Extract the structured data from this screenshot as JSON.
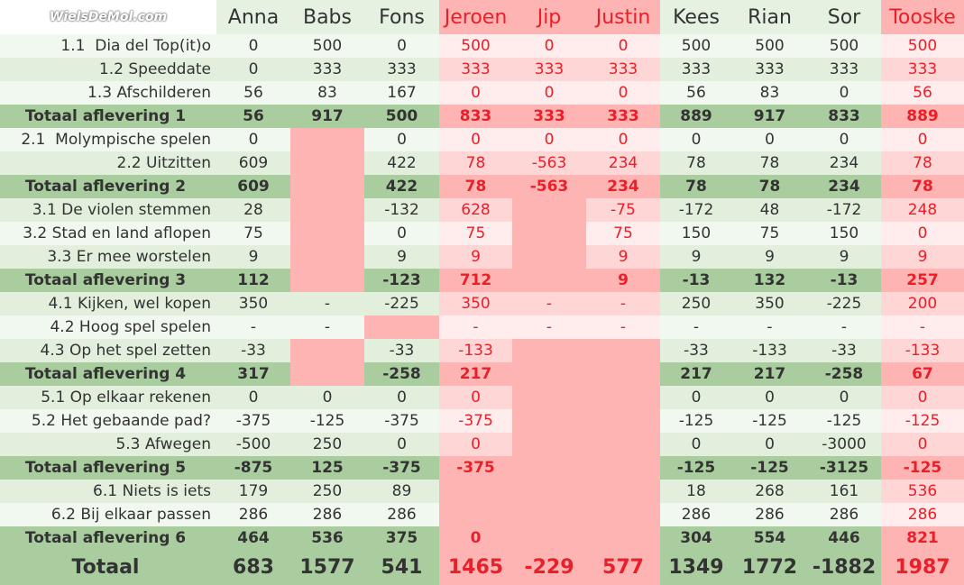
{
  "header": {
    "logo": "WielsDeMol.com",
    "columns": [
      {
        "name": "Anna",
        "color": "green"
      },
      {
        "name": "Babs",
        "color": "green"
      },
      {
        "name": "Fons",
        "color": "green"
      },
      {
        "name": "Jeroen",
        "color": "red"
      },
      {
        "name": "Jip",
        "color": "red"
      },
      {
        "name": "Justin",
        "color": "red"
      },
      {
        "name": "Kees",
        "color": "green"
      },
      {
        "name": "Rian",
        "color": "green"
      },
      {
        "name": "Sor",
        "color": "green"
      },
      {
        "name": "Tooske",
        "color": "red"
      }
    ]
  },
  "table": {
    "rows": [
      {
        "label": "1.1  Dia del Top(it)o",
        "cells": [
          "0",
          "500",
          "0",
          "500",
          "0",
          "0",
          "500",
          "500",
          "500",
          "500"
        ]
      },
      {
        "label": "1.2 Speeddate",
        "cells": [
          "0",
          "333",
          "333",
          "333",
          "333",
          "333",
          "333",
          "333",
          "333",
          "333"
        ]
      },
      {
        "label": "1.3 Afschilderen",
        "cells": [
          "56",
          "83",
          "167",
          "0",
          "0",
          "0",
          "56",
          "83",
          "0",
          "56"
        ]
      },
      {
        "label": "Totaal aflevering 1",
        "cells": [
          "56",
          "917",
          "500",
          "833",
          "333",
          "333",
          "889",
          "917",
          "833",
          "889"
        ]
      },
      {
        "label": "2.1  Molympische spelen",
        "cells": [
          "0",
          null,
          "0",
          "0",
          "0",
          "0",
          "0",
          "0",
          "0",
          "0"
        ]
      },
      {
        "label": "2.2 Uitzitten",
        "cells": [
          "609",
          null,
          "422",
          "78",
          "-563",
          "234",
          "78",
          "78",
          "234",
          "78"
        ]
      },
      {
        "label": "Totaal aflevering 2",
        "cells": [
          "609",
          null,
          "422",
          "78",
          "-563",
          "234",
          "78",
          "78",
          "234",
          "78"
        ]
      },
      {
        "label": "3.1 De violen stemmen",
        "cells": [
          "28",
          null,
          "-132",
          "628",
          null,
          "-75",
          "-172",
          "48",
          "-172",
          "248"
        ]
      },
      {
        "label": "3.2 Stad en land aflopen",
        "cells": [
          "75",
          null,
          "0",
          "75",
          null,
          "75",
          "150",
          "75",
          "150",
          "0"
        ]
      },
      {
        "label": "3.3 Er mee worstelen",
        "cells": [
          "9",
          null,
          "9",
          "9",
          null,
          "9",
          "9",
          "9",
          "9",
          "9"
        ]
      },
      {
        "label": "Totaal aflevering 3",
        "cells": [
          "112",
          null,
          "-123",
          "712",
          null,
          "9",
          "-13",
          "132",
          "-13",
          "257"
        ]
      },
      {
        "label": "4.1 Kijken, wel kopen",
        "cells": [
          "350",
          "-",
          "-225",
          "350",
          "-",
          "-",
          "250",
          "350",
          "-225",
          "200"
        ]
      },
      {
        "label": "4.2 Hoog spel spelen",
        "cells": [
          "-",
          "-",
          null,
          "-",
          "-",
          "-",
          "-",
          "-",
          "-",
          "-"
        ]
      },
      {
        "label": "4.3 Op het spel zetten",
        "cells": [
          "-33",
          null,
          "-33",
          "-133",
          null,
          null,
          "-33",
          "-133",
          "-33",
          "-133"
        ]
      },
      {
        "label": "Totaal aflevering 4",
        "cells": [
          "317",
          null,
          "-258",
          "217",
          null,
          null,
          "217",
          "217",
          "-258",
          "67"
        ]
      },
      {
        "label": "5.1 Op elkaar rekenen",
        "cells": [
          "0",
          "0",
          "0",
          "0",
          null,
          null,
          "0",
          "0",
          "0",
          "0"
        ]
      },
      {
        "label": "5.2 Het gebaande pad?",
        "cells": [
          "-375",
          "-125",
          "-375",
          "-375",
          null,
          null,
          "-125",
          "-125",
          "-125",
          "-125"
        ]
      },
      {
        "label": "5.3 Afwegen",
        "cells": [
          "-500",
          "250",
          "0",
          "0",
          null,
          null,
          "0",
          "0",
          "-3000",
          "0"
        ]
      },
      {
        "label": "Totaal aflevering 5",
        "cells": [
          "-875",
          "125",
          "-375",
          "-375",
          null,
          null,
          "-125",
          "-125",
          "-3125",
          "-125"
        ]
      },
      {
        "label": "6.1 Niets is iets",
        "cells": [
          "179",
          "250",
          "89",
          null,
          null,
          null,
          "18",
          "268",
          "161",
          "536"
        ]
      },
      {
        "label": "6.2 Bij elkaar passen",
        "cells": [
          "286",
          "286",
          "286",
          null,
          null,
          null,
          "286",
          "286",
          "286",
          "286"
        ]
      },
      {
        "label": "Totaal aflevering 6",
        "cells": [
          "464",
          "536",
          "375",
          "0",
          null,
          null,
          "304",
          "554",
          "446",
          "821"
        ]
      },
      {
        "label": "Totaal",
        "cells": [
          "683",
          "1577",
          "541",
          "1465",
          "-229",
          "577",
          "1349",
          "1772",
          "-1882",
          "1987"
        ]
      }
    ]
  }
}
